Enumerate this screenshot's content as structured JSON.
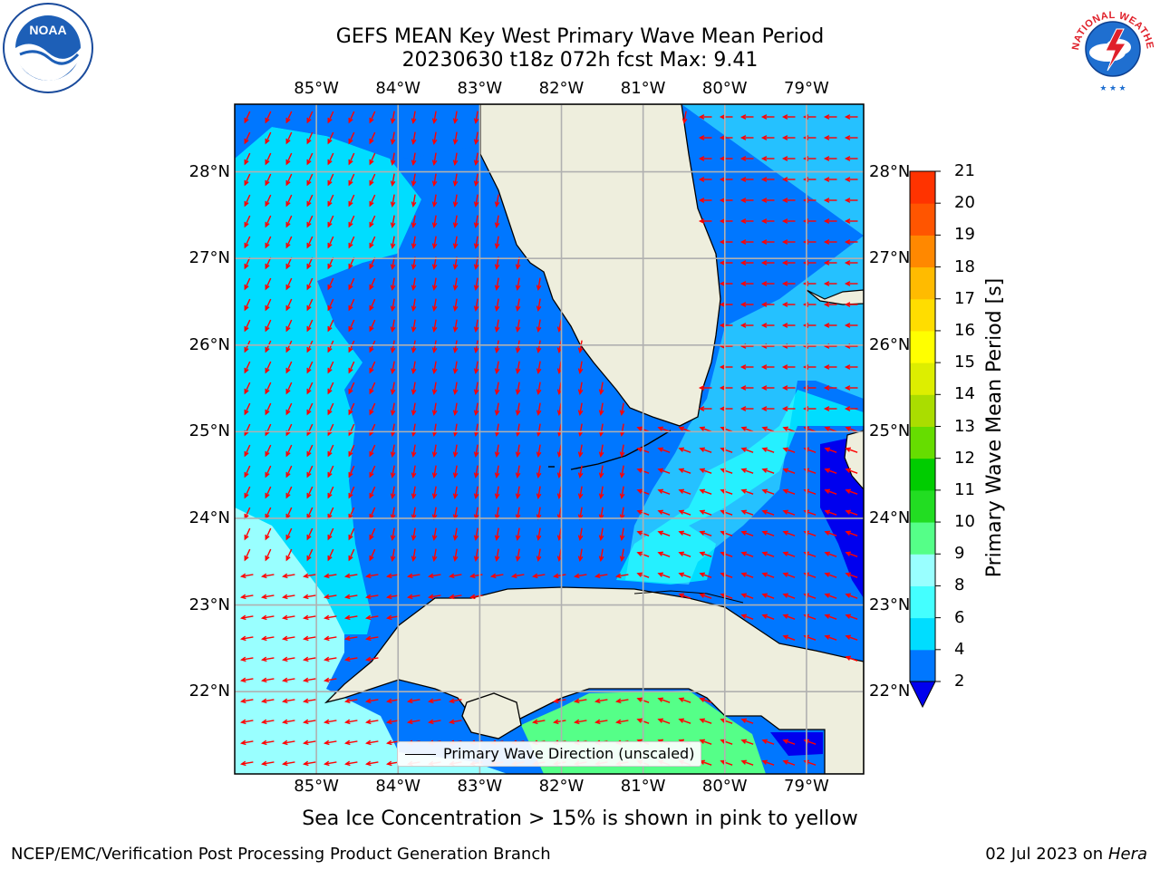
{
  "title": {
    "line1": "GEFS MEAN Key West Primary Wave Mean Period",
    "line2": "20230630 t18z 072h fcst   Max: 9.41"
  },
  "logos": {
    "left": {
      "name": "noaa-logo",
      "text": "NOAA"
    },
    "right": {
      "name": "nws-logo",
      "text": "NATIONAL WEATHER SERVICE"
    }
  },
  "map": {
    "lon_labels": [
      "85°W",
      "84°W",
      "83°W",
      "82°W",
      "81°W",
      "80°W",
      "79°W"
    ],
    "lat_labels": [
      "28°N",
      "27°N",
      "26°N",
      "25°N",
      "24°N",
      "23°N",
      "22°N"
    ],
    "extent": {
      "lon": [
        -86.0,
        -78.3
      ],
      "lat": [
        21.05,
        28.78
      ]
    },
    "land_color": "#eeeedd",
    "vector_color": "#ff0000",
    "gridlines": true,
    "legend": "Primary Wave Direction (unscaled)"
  },
  "colorbar": {
    "label": "Primary Wave Mean Period [s]",
    "ticks": [
      "2",
      "4",
      "6",
      "8",
      "9",
      "10",
      "11",
      "12",
      "13",
      "14",
      "15",
      "16",
      "17",
      "18",
      "19",
      "20",
      "21"
    ],
    "colors": [
      "#0077ff",
      "#00ddff",
      "#44ffff",
      "#99ffff",
      "#55ff88",
      "#22dd22",
      "#00cc00",
      "#66dd00",
      "#aadd00",
      "#ddee00",
      "#ffff00",
      "#ffdd00",
      "#ffbb00",
      "#ff8800",
      "#ff5500",
      "#ff3300"
    ],
    "under_color": "#0000ee"
  },
  "ice_note": "Sea Ice Concentration > 15% is shown in pink to yellow",
  "footer": {
    "left": "NCEP/EMC/Verification Post Processing Product Generation Branch",
    "date": "02 Jul 2023 on ",
    "host": "Hera"
  }
}
